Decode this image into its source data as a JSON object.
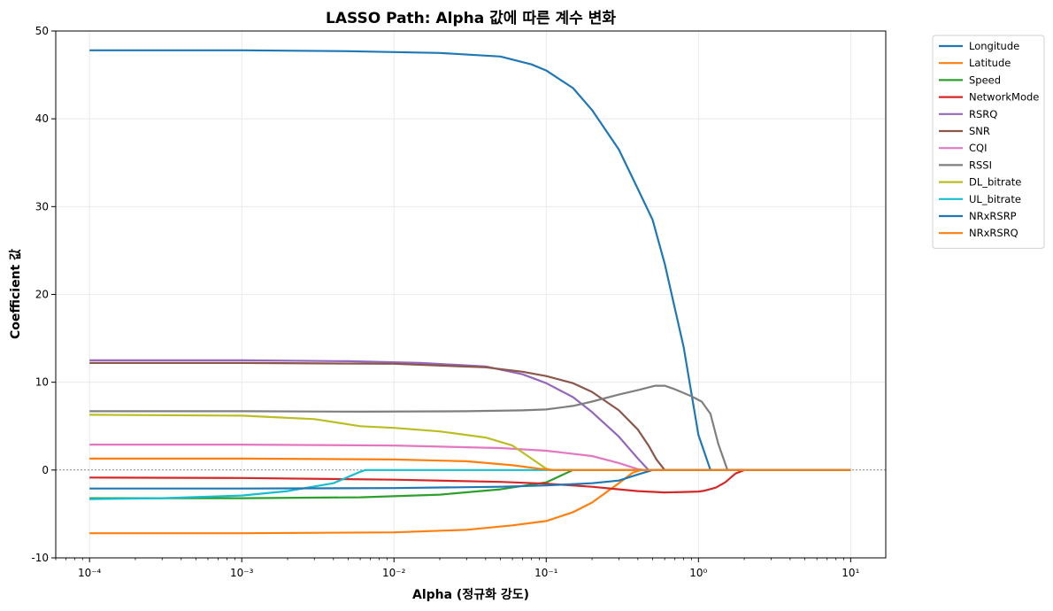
{
  "chart_data": {
    "type": "line",
    "title": "LASSO Path: Alpha 값에 따른 계수 변화",
    "xlabel": "Alpha (정규화 강도)",
    "ylabel": "Coefficient 값",
    "x_scale": "log",
    "xlim": [
      6e-05,
      17
    ],
    "ylim": [
      -10,
      50
    ],
    "x_ticks": [
      0.0001,
      0.001,
      0.01,
      0.1,
      1,
      10
    ],
    "x_tick_labels": [
      "10⁻⁴",
      "10⁻³",
      "10⁻²",
      "10⁻¹",
      "10⁰",
      "10¹"
    ],
    "y_ticks": [
      -10,
      0,
      10,
      20,
      30,
      40,
      50
    ],
    "y_tick_labels": [
      "-10",
      "0",
      "10",
      "20",
      "30",
      "40",
      "50"
    ],
    "grid": true,
    "zero_line": true,
    "legend_position": "outside top-right",
    "series": [
      {
        "name": "Longitude",
        "color": "#1f77b4",
        "points": [
          [
            0.0001,
            47.8
          ],
          [
            0.001,
            47.8
          ],
          [
            0.005,
            47.7
          ],
          [
            0.02,
            47.5
          ],
          [
            0.05,
            47.1
          ],
          [
            0.08,
            46.2
          ],
          [
            0.1,
            45.5
          ],
          [
            0.15,
            43.5
          ],
          [
            0.2,
            41
          ],
          [
            0.3,
            36.5
          ],
          [
            0.4,
            32
          ],
          [
            0.5,
            28.5
          ],
          [
            0.6,
            23.5
          ],
          [
            0.8,
            14
          ],
          [
            1.0,
            4
          ],
          [
            1.2,
            0
          ],
          [
            10,
            0
          ]
        ]
      },
      {
        "name": "Latitude",
        "color": "#ff7f0e",
        "points": [
          [
            0.0001,
            -7.2
          ],
          [
            0.001,
            -7.2
          ],
          [
            0.01,
            -7.1
          ],
          [
            0.03,
            -6.8
          ],
          [
            0.06,
            -6.3
          ],
          [
            0.1,
            -5.8
          ],
          [
            0.15,
            -4.8
          ],
          [
            0.2,
            -3.7
          ],
          [
            0.3,
            -1.5
          ],
          [
            0.37,
            -0.3
          ],
          [
            0.42,
            0
          ],
          [
            10,
            0
          ]
        ]
      },
      {
        "name": "Speed",
        "color": "#2ca02c",
        "points": [
          [
            0.0001,
            -3.2
          ],
          [
            0.001,
            -3.2
          ],
          [
            0.006,
            -3.1
          ],
          [
            0.02,
            -2.8
          ],
          [
            0.05,
            -2.2
          ],
          [
            0.1,
            -1.4
          ],
          [
            0.15,
            0
          ],
          [
            10,
            0
          ]
        ]
      },
      {
        "name": "NetworkMode",
        "color": "#d62728",
        "points": [
          [
            0.0001,
            -0.85
          ],
          [
            0.001,
            -0.9
          ],
          [
            0.01,
            -1.1
          ],
          [
            0.05,
            -1.35
          ],
          [
            0.1,
            -1.55
          ],
          [
            0.2,
            -1.9
          ],
          [
            0.3,
            -2.2
          ],
          [
            0.4,
            -2.4
          ],
          [
            0.6,
            -2.55
          ],
          [
            0.8,
            -2.5
          ],
          [
            1.0,
            -2.45
          ],
          [
            1.1,
            -2.35
          ],
          [
            1.3,
            -2.0
          ],
          [
            1.5,
            -1.4
          ],
          [
            1.75,
            -0.4
          ],
          [
            2.0,
            0
          ],
          [
            10,
            0
          ]
        ]
      },
      {
        "name": "RSRQ",
        "color": "#9467bd",
        "points": [
          [
            0.0001,
            12.5
          ],
          [
            0.001,
            12.5
          ],
          [
            0.005,
            12.4
          ],
          [
            0.015,
            12.2
          ],
          [
            0.04,
            11.8
          ],
          [
            0.07,
            10.9
          ],
          [
            0.1,
            9.9
          ],
          [
            0.15,
            8.3
          ],
          [
            0.2,
            6.6
          ],
          [
            0.3,
            3.8
          ],
          [
            0.4,
            1.3
          ],
          [
            0.47,
            0
          ],
          [
            10,
            0
          ]
        ]
      },
      {
        "name": "SNR",
        "color": "#8c564b",
        "points": [
          [
            0.0001,
            12.2
          ],
          [
            0.001,
            12.2
          ],
          [
            0.01,
            12.1
          ],
          [
            0.04,
            11.7
          ],
          [
            0.07,
            11.2
          ],
          [
            0.1,
            10.7
          ],
          [
            0.15,
            9.9
          ],
          [
            0.2,
            8.9
          ],
          [
            0.3,
            6.8
          ],
          [
            0.4,
            4.6
          ],
          [
            0.47,
            2.8
          ],
          [
            0.53,
            1.2
          ],
          [
            0.6,
            0
          ],
          [
            10,
            0
          ]
        ]
      },
      {
        "name": "CQI",
        "color": "#e377c2",
        "points": [
          [
            0.0001,
            2.9
          ],
          [
            0.001,
            2.9
          ],
          [
            0.01,
            2.8
          ],
          [
            0.05,
            2.5
          ],
          [
            0.1,
            2.2
          ],
          [
            0.2,
            1.6
          ],
          [
            0.3,
            0.8
          ],
          [
            0.4,
            0.1
          ],
          [
            0.45,
            0
          ],
          [
            10,
            0
          ]
        ]
      },
      {
        "name": "RSSI",
        "color": "#7f7f7f",
        "points": [
          [
            0.0001,
            6.7
          ],
          [
            0.001,
            6.7
          ],
          [
            0.006,
            6.65
          ],
          [
            0.03,
            6.7
          ],
          [
            0.07,
            6.8
          ],
          [
            0.1,
            6.9
          ],
          [
            0.15,
            7.3
          ],
          [
            0.2,
            7.8
          ],
          [
            0.3,
            8.6
          ],
          [
            0.4,
            9.1
          ],
          [
            0.52,
            9.6
          ],
          [
            0.6,
            9.6
          ],
          [
            0.7,
            9.2
          ],
          [
            0.9,
            8.4
          ],
          [
            1.05,
            7.8
          ],
          [
            1.2,
            6.4
          ],
          [
            1.35,
            3.0
          ],
          [
            1.55,
            0
          ],
          [
            10,
            0
          ]
        ]
      },
      {
        "name": "DL_bitrate",
        "color": "#bcbd22",
        "points": [
          [
            0.0001,
            6.3
          ],
          [
            0.001,
            6.2
          ],
          [
            0.003,
            5.8
          ],
          [
            0.006,
            5.0
          ],
          [
            0.01,
            4.8
          ],
          [
            0.02,
            4.4
          ],
          [
            0.04,
            3.7
          ],
          [
            0.06,
            2.8
          ],
          [
            0.08,
            1.3
          ],
          [
            0.1,
            0.15
          ],
          [
            0.11,
            0
          ],
          [
            10,
            0
          ]
        ]
      },
      {
        "name": "UL_bitrate",
        "color": "#17becf",
        "points": [
          [
            0.0001,
            -3.3
          ],
          [
            0.0003,
            -3.2
          ],
          [
            0.001,
            -2.9
          ],
          [
            0.002,
            -2.4
          ],
          [
            0.004,
            -1.5
          ],
          [
            0.006,
            -0.2
          ],
          [
            0.0065,
            0
          ],
          [
            10,
            0
          ]
        ]
      },
      {
        "name": "NRxRSRP",
        "color": "#1f77b4",
        "points": [
          [
            0.0001,
            -2.1
          ],
          [
            0.001,
            -2.1
          ],
          [
            0.01,
            -2.05
          ],
          [
            0.05,
            -1.9
          ],
          [
            0.1,
            -1.75
          ],
          [
            0.2,
            -1.5
          ],
          [
            0.3,
            -1.2
          ],
          [
            0.4,
            -0.5
          ],
          [
            0.5,
            0
          ],
          [
            10,
            0
          ]
        ]
      },
      {
        "name": "NRxRSRQ",
        "color": "#ff7f0e",
        "points": [
          [
            0.0001,
            1.3
          ],
          [
            0.001,
            1.3
          ],
          [
            0.01,
            1.2
          ],
          [
            0.03,
            1.0
          ],
          [
            0.06,
            0.55
          ],
          [
            0.09,
            0.15
          ],
          [
            0.11,
            0
          ],
          [
            10,
            0
          ]
        ]
      }
    ]
  }
}
